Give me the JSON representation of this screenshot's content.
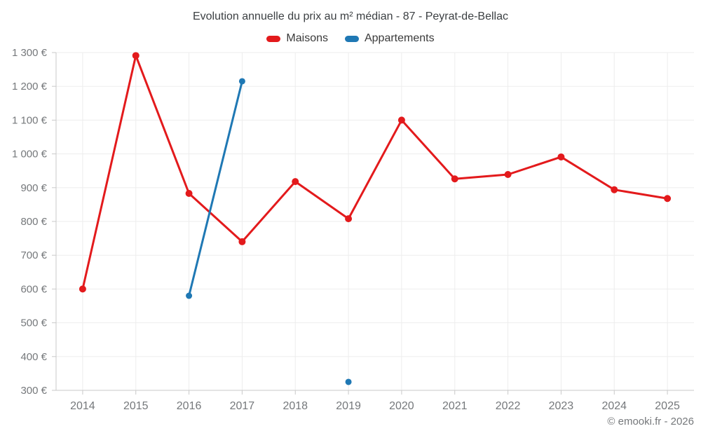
{
  "title": "Evolution annuelle du prix au m² médian - 87 - Peyrat-de-Bellac",
  "footer": "© emooki.fr - 2026",
  "legend": [
    {
      "label": "Maisons",
      "color": "#E31A1C"
    },
    {
      "label": "Appartements",
      "color": "#1F78B4"
    }
  ],
  "colors": {
    "grid": "#EDEDED",
    "axis": "#C9C9C9",
    "tick_label": "#75787B",
    "title": "#3C4043"
  },
  "chart_data": {
    "type": "line",
    "title": "Evolution annuelle du prix au m² médian - 87 - Peyrat-de-Bellac",
    "xlabel": "",
    "ylabel": "",
    "categories": [
      "2014",
      "2015",
      "2016",
      "2017",
      "2018",
      "2019",
      "2020",
      "2021",
      "2022",
      "2023",
      "2024",
      "2025"
    ],
    "series": [
      {
        "name": "Maisons",
        "color": "#E31A1C",
        "line_width": 3,
        "point_radius": 5,
        "values": [
          600,
          1291,
          883,
          740,
          918,
          808,
          1100,
          926,
          939,
          991,
          894,
          868
        ]
      },
      {
        "name": "Appartements",
        "color": "#1F78B4",
        "line_width": 3,
        "point_radius": 4.5,
        "values": [
          null,
          null,
          580,
          1215,
          null,
          325,
          null,
          null,
          null,
          null,
          null,
          null
        ]
      }
    ],
    "ylim": [
      300,
      1300
    ],
    "ytick_step": 100,
    "y_tick_labels": [
      "300 €",
      "400 €",
      "500 €",
      "600 €",
      "700 €",
      "800 €",
      "900 €",
      "1 000 €",
      "1 100 €",
      "1 200 €",
      "1 300 €"
    ],
    "grid": true,
    "legend_position": "top",
    "gaps_not_spanned": true
  }
}
